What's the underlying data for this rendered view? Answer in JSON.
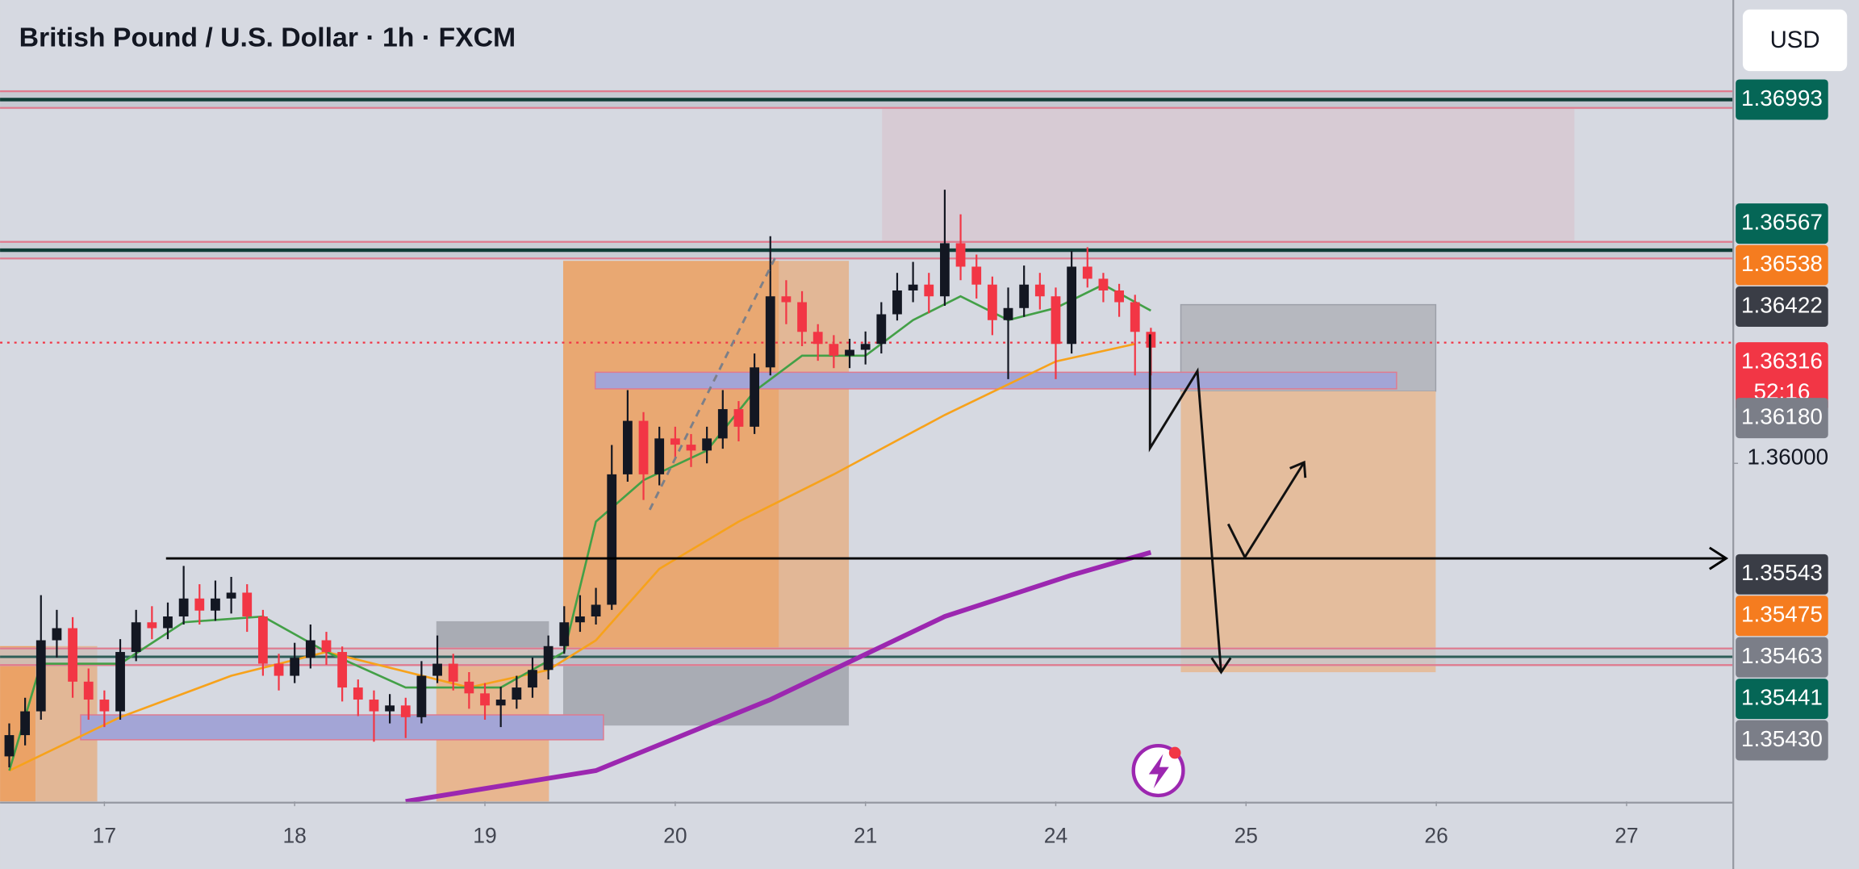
{
  "chart_data": {
    "type": "candlestick",
    "title": "British Pound / U.S. Dollar · 1h · FXCM",
    "currency": "USD",
    "up_color": "#131722",
    "down_color": "#f23645",
    "x": [
      -6,
      -5,
      -4,
      -3,
      -2,
      -1,
      0,
      1,
      2,
      3,
      4,
      5,
      6,
      7,
      8,
      9,
      10,
      11,
      12,
      13,
      14,
      15,
      16,
      17,
      18,
      19,
      20,
      21,
      22,
      23,
      24,
      25,
      26,
      27,
      28,
      29,
      30,
      31,
      32,
      33,
      34,
      35,
      36,
      37,
      38,
      39,
      40,
      41,
      42,
      43,
      44,
      45,
      46,
      47,
      48,
      49,
      50,
      51,
      52,
      53,
      54,
      55,
      56,
      57,
      58,
      59,
      60,
      61,
      62,
      63,
      64,
      65,
      66
    ],
    "open": [
      1.352,
      1.35258,
      1.35323,
      1.35517,
      1.3555,
      1.35404,
      1.35355,
      1.35323,
      1.35485,
      1.35566,
      1.3555,
      1.35582,
      1.35631,
      1.35598,
      1.35631,
      1.35647,
      1.35582,
      1.35453,
      1.3542,
      1.35469,
      1.35517,
      1.35485,
      1.35388,
      1.35355,
      1.35323,
      1.35339,
      1.35307,
      1.3542,
      1.35453,
      1.35404,
      1.35372,
      1.35339,
      1.35355,
      1.35388,
      1.35436,
      1.35501,
      1.35566,
      1.35582,
      1.35614,
      1.3597,
      1.36116,
      1.3597,
      1.36068,
      1.36051,
      1.36035,
      1.36068,
      1.36148,
      1.361,
      1.36262,
      1.36456,
      1.3644,
      1.36359,
      1.36326,
      1.36294,
      1.3631,
      1.36326,
      1.36407,
      1.36472,
      1.36488,
      1.36456,
      1.36601,
      1.36537,
      1.36488,
      1.36391,
      1.36424,
      1.36488,
      1.36456,
      1.36326,
      1.36537,
      1.36504,
      1.36472,
      1.3644,
      1.36359
    ],
    "high": [
      1.3529,
      1.3536,
      1.3564,
      1.356,
      1.3558,
      1.3544,
      1.3538,
      1.3552,
      1.356,
      1.3561,
      1.3562,
      1.3572,
      1.3567,
      1.3568,
      1.3569,
      1.3567,
      1.356,
      1.3548,
      1.3551,
      1.3556,
      1.3554,
      1.355,
      1.3541,
      1.3538,
      1.3537,
      1.3536,
      1.3546,
      1.3553,
      1.3548,
      1.3543,
      1.354,
      1.3539,
      1.3542,
      1.3547,
      1.3553,
      1.3561,
      1.3564,
      1.3566,
      1.3605,
      1.362,
      1.3614,
      1.361,
      1.361,
      1.3608,
      1.361,
      1.362,
      1.3617,
      1.363,
      1.3662,
      1.365,
      1.3647,
      1.3638,
      1.3635,
      1.3634,
      1.3636,
      1.3644,
      1.3652,
      1.3655,
      1.3652,
      1.36747,
      1.3668,
      1.3657,
      1.3651,
      1.3648,
      1.3654,
      1.3652,
      1.3648,
      1.3658,
      1.3659,
      1.3652,
      1.3649,
      1.3646,
      1.3637
    ],
    "low": [
      1.3517,
      1.3523,
      1.353,
      1.3547,
      1.3536,
      1.353,
      1.3528,
      1.353,
      1.3546,
      1.3552,
      1.3552,
      1.3556,
      1.3556,
      1.3557,
      1.3559,
      1.3554,
      1.3542,
      1.3538,
      1.354,
      1.3544,
      1.3545,
      1.3535,
      1.3531,
      1.3524,
      1.3529,
      1.3525,
      1.3529,
      1.354,
      1.3538,
      1.3533,
      1.353,
      1.3528,
      1.3533,
      1.3536,
      1.3541,
      1.3548,
      1.3554,
      1.3556,
      1.356,
      1.3595,
      1.359,
      1.3594,
      1.3601,
      1.3599,
      1.36,
      1.3604,
      1.3606,
      1.3608,
      1.3624,
      1.3638,
      1.3632,
      1.3628,
      1.3626,
      1.3626,
      1.3627,
      1.363,
      1.3639,
      1.3644,
      1.3641,
      1.3643,
      1.365,
      1.3645,
      1.3635,
      1.3623,
      1.364,
      1.3642,
      1.3623,
      1.363,
      1.3648,
      1.3644,
      1.364,
      1.3624,
      1.3624
    ],
    "close": [
      1.35258,
      1.35323,
      1.35517,
      1.3555,
      1.35404,
      1.35355,
      1.35323,
      1.35485,
      1.35566,
      1.3555,
      1.35582,
      1.35631,
      1.35598,
      1.35631,
      1.35647,
      1.35582,
      1.35453,
      1.3542,
      1.35469,
      1.35517,
      1.35485,
      1.35388,
      1.35355,
      1.35323,
      1.35339,
      1.35307,
      1.3542,
      1.35453,
      1.35404,
      1.35372,
      1.35339,
      1.35355,
      1.35388,
      1.35436,
      1.35501,
      1.35566,
      1.35582,
      1.35614,
      1.3597,
      1.36116,
      1.3597,
      1.36068,
      1.36051,
      1.36035,
      1.36068,
      1.36148,
      1.361,
      1.36262,
      1.36456,
      1.3644,
      1.36359,
      1.36326,
      1.36294,
      1.3631,
      1.36326,
      1.36407,
      1.36472,
      1.36488,
      1.36456,
      1.36601,
      1.36537,
      1.36488,
      1.36391,
      1.36424,
      1.36488,
      1.36456,
      1.36326,
      1.36537,
      1.36504,
      1.36472,
      1.3644,
      1.36359,
      1.36316
    ],
    "xlim": [
      -6.58,
      102.58
    ],
    "xticks": [
      {
        "value": 0,
        "label": "17"
      },
      {
        "value": 12,
        "label": "18"
      },
      {
        "value": 24,
        "label": "19"
      },
      {
        "value": 36,
        "label": "20"
      },
      {
        "value": 48,
        "label": "21"
      },
      {
        "value": 60,
        "label": "24"
      },
      {
        "value": 72,
        "label": "25"
      },
      {
        "value": 84,
        "label": "26"
      },
      {
        "value": 96,
        "label": "27"
      }
    ],
    "ylim": [
      1.35077,
      1.37265
    ],
    "yticks": [
      {
        "value": 1.36,
        "label": "1.36000"
      }
    ],
    "indicators": [
      {
        "color": "#9c27b0",
        "x": [
          19,
          31,
          42,
          53,
          61,
          66
        ],
        "values": [
          1.35077,
          1.35161,
          1.35355,
          1.35582,
          1.35695,
          1.35757
        ]
      },
      {
        "color": "#f7a21b",
        "x": [
          -6,
          1,
          8,
          14,
          23,
          28,
          31,
          35,
          40,
          46,
          53,
          60,
          65
        ],
        "values": [
          1.35161,
          1.35307,
          1.3542,
          1.35485,
          1.35388,
          1.35436,
          1.35517,
          1.35712,
          1.35841,
          1.3597,
          1.36132,
          1.36278,
          1.36326
        ]
      },
      {
        "color": "#43a047",
        "x": [
          -6,
          -4,
          1,
          5,
          10,
          14,
          19,
          25,
          29,
          31,
          34,
          38,
          41,
          44,
          48,
          51,
          54,
          57,
          60,
          63,
          66
        ],
        "values": [
          1.35161,
          1.35453,
          1.35453,
          1.35566,
          1.35582,
          1.35485,
          1.35388,
          1.35388,
          1.35485,
          1.35841,
          1.35954,
          1.36035,
          1.36197,
          1.36294,
          1.36294,
          1.36391,
          1.36456,
          1.36391,
          1.36424,
          1.36488,
          1.36417
        ]
      }
    ],
    "price_labels": [
      {
        "value": 1.36993,
        "label": "1.36993",
        "color": "#056656"
      },
      {
        "value": 1.36567,
        "label": "1.36567",
        "color": "#056656"
      },
      {
        "value": 1.36538,
        "label": "1.36538",
        "color": "#f57c1f"
      },
      {
        "value": 1.36422,
        "label": "1.36422",
        "color": "#3a3d46"
      },
      {
        "value": 1.36316,
        "label": "1.36316",
        "sublabel": "52:16",
        "color": "#f23645"
      },
      {
        "value": 1.3618,
        "label": "1.36180",
        "color": "#7b7e88"
      },
      {
        "value": 1.35543,
        "label": "1.35543",
        "color": "#3a3d46"
      },
      {
        "value": 1.35475,
        "label": "1.35475",
        "color": "#f57c1f"
      },
      {
        "value": 1.35463,
        "label": "1.35463",
        "color": "#7b7e88"
      },
      {
        "value": 1.35441,
        "label": "1.35441",
        "color": "#056656"
      },
      {
        "value": 1.3543,
        "label": "1.35430",
        "color": "#7b7e88"
      }
    ]
  }
}
